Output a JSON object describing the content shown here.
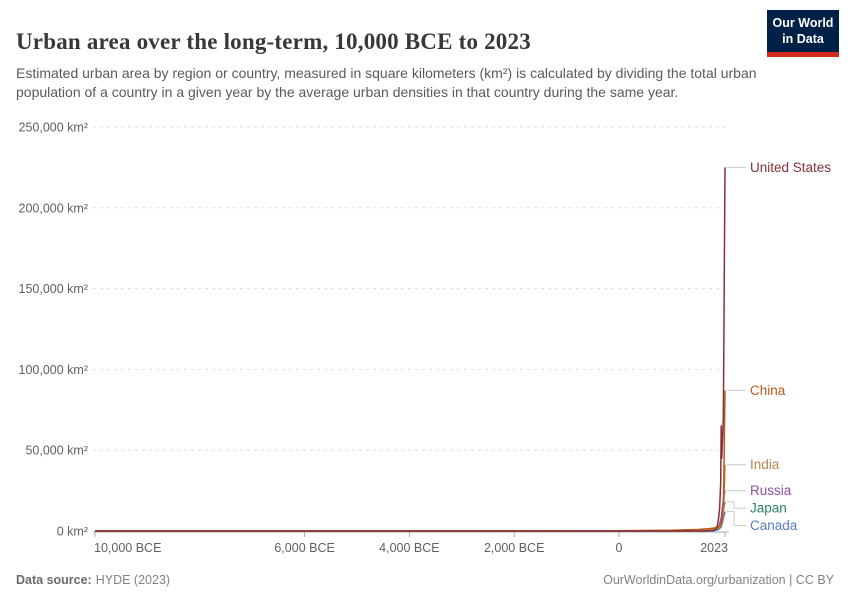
{
  "header": {
    "title": "Urban area over the long-term, 10,000 BCE to 2023",
    "subtitle": "Estimated urban area by region or country, measured in square kilometers (km²) is calculated by dividing the total urban population of a country in a given year by the average urban densities in that country during the same year.",
    "logo": {
      "line1": "Our World",
      "line2": "in Data"
    }
  },
  "footer": {
    "source_prefix": "Data source:",
    "source_value": "HYDE (2023)",
    "credit": "OurWorldinData.org/urbanization | CC BY"
  },
  "colors": {
    "logo_bg": "#002147",
    "logo_stripe": "#D12B1F",
    "grid": "#DEDEDE",
    "axis": "#A8A8A8",
    "tick_text": "#606060",
    "connector": "#C8C8C8"
  },
  "chart_data": {
    "type": "line",
    "title": "Urban area over the long-term, 10,000 BCE to 2023",
    "unit": "km²",
    "legend_position": "right-edge-labels",
    "x_axis": {
      "range": [
        -10000,
        2023
      ],
      "ticks": [
        {
          "year": -10000,
          "label": "10,000 BCE"
        },
        {
          "year": -6000,
          "label": "6,000 BCE"
        },
        {
          "year": -4000,
          "label": "4,000 BCE"
        },
        {
          "year": -2000,
          "label": "2,000 BCE"
        },
        {
          "year": 0,
          "label": "0"
        },
        {
          "year": 2023,
          "label": "2023"
        }
      ]
    },
    "y_axis": {
      "range": [
        0,
        250000
      ],
      "grid": "dashed",
      "ticks": [
        {
          "value": 0,
          "label": "0 km²"
        },
        {
          "value": 50000,
          "label": "50,000 km²"
        },
        {
          "value": 100000,
          "label": "100,000 km²"
        },
        {
          "value": 150000,
          "label": "150,000 km²"
        },
        {
          "value": 200000,
          "label": "200,000 km²"
        },
        {
          "value": 250000,
          "label": "250,000 km²"
        }
      ]
    },
    "series": [
      {
        "name": "United States",
        "color": "#883039",
        "value_2023": 225000,
        "points": [
          [
            -10000,
            0
          ],
          [
            0,
            0
          ],
          [
            1500,
            0
          ],
          [
            1600,
            10
          ],
          [
            1700,
            50
          ],
          [
            1750,
            120
          ],
          [
            1800,
            350
          ],
          [
            1850,
            1200
          ],
          [
            1870,
            2500
          ],
          [
            1900,
            8000
          ],
          [
            1920,
            14000
          ],
          [
            1940,
            30000
          ],
          [
            1950,
            65000
          ],
          [
            1960,
            45000
          ],
          [
            1980,
            60000
          ],
          [
            1990,
            70000
          ],
          [
            2000,
            110000
          ],
          [
            2010,
            160000
          ],
          [
            2023,
            225000
          ]
        ]
      },
      {
        "name": "China",
        "color": "#BE5915",
        "value_2023": 87000,
        "points": [
          [
            -10000,
            0
          ],
          [
            -5000,
            2
          ],
          [
            -3000,
            10
          ],
          [
            -2000,
            40
          ],
          [
            -1000,
            90
          ],
          [
            0,
            200
          ],
          [
            500,
            300
          ],
          [
            1000,
            450
          ],
          [
            1500,
            900
          ],
          [
            1700,
            1400
          ],
          [
            1800,
            1800
          ],
          [
            1850,
            2100
          ],
          [
            1900,
            2600
          ],
          [
            1950,
            4500
          ],
          [
            1970,
            8000
          ],
          [
            1990,
            18000
          ],
          [
            2000,
            30000
          ],
          [
            2010,
            55000
          ],
          [
            2023,
            87000
          ]
        ]
      },
      {
        "name": "India",
        "color": "#B3854C",
        "value_2023": 41000,
        "points": [
          [
            -10000,
            0
          ],
          [
            -3000,
            8
          ],
          [
            -2000,
            30
          ],
          [
            -1000,
            70
          ],
          [
            0,
            150
          ],
          [
            500,
            220
          ],
          [
            1000,
            300
          ],
          [
            1500,
            700
          ],
          [
            1800,
            1100
          ],
          [
            1900,
            1600
          ],
          [
            1950,
            3500
          ],
          [
            1980,
            8000
          ],
          [
            2000,
            16000
          ],
          [
            2010,
            26000
          ],
          [
            2023,
            41000
          ]
        ]
      },
      {
        "name": "Russia",
        "color": "#8C4EA0",
        "value_2023": 25000,
        "points": [
          [
            -10000,
            0
          ],
          [
            0,
            10
          ],
          [
            1000,
            60
          ],
          [
            1500,
            150
          ],
          [
            1800,
            600
          ],
          [
            1900,
            2200
          ],
          [
            1950,
            8000
          ],
          [
            1980,
            16000
          ],
          [
            2000,
            21000
          ],
          [
            2023,
            25000
          ]
        ]
      },
      {
        "name": "Japan",
        "color": "#2C8465",
        "value_2023": 18000,
        "points": [
          [
            -10000,
            0
          ],
          [
            0,
            10
          ],
          [
            1000,
            80
          ],
          [
            1500,
            200
          ],
          [
            1800,
            400
          ],
          [
            1900,
            1500
          ],
          [
            1950,
            4000
          ],
          [
            1980,
            10000
          ],
          [
            2000,
            14500
          ],
          [
            2023,
            18000
          ]
        ]
      },
      {
        "name": "Canada",
        "color": "#577CC0",
        "value_2023": 12000,
        "points": [
          [
            -10000,
            0
          ],
          [
            1600,
            0
          ],
          [
            1800,
            60
          ],
          [
            1900,
            900
          ],
          [
            1950,
            2500
          ],
          [
            1980,
            6000
          ],
          [
            2000,
            9000
          ],
          [
            2023,
            12000
          ]
        ]
      }
    ]
  }
}
